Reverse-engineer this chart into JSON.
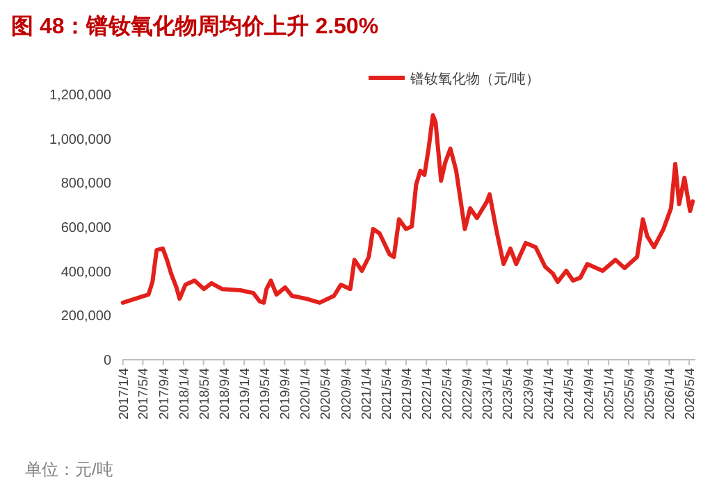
{
  "chart_data": {
    "type": "line",
    "title": "图 48：镨钕氧化物周均价上升 2.50%",
    "annotations": [
      "单位：元/吨"
    ],
    "legend": "top right",
    "grid": false,
    "marker": "none",
    "line_style": "solid",
    "x": [
      "2017-01-04",
      "2017-06-07",
      "2017-07-01",
      "2017-07-26",
      "2017-09-01",
      "2017-09-26",
      "2017-10-21",
      "2017-11-22",
      "2017-12-11",
      "2018-01-15",
      "2018-03-11",
      "2018-05-07",
      "2018-06-21",
      "2018-08-23",
      "2018-12-12",
      "2019-02-27",
      "2019-04-07",
      "2019-05-02",
      "2019-05-18",
      "2019-06-13",
      "2019-07-17",
      "2019-09-07",
      "2019-10-18",
      "2020-01-11",
      "2020-04-02",
      "2020-06-27",
      "2020-08-07",
      "2020-10-03",
      "2020-10-28",
      "2020-12-12",
      "2021-01-22",
      "2021-02-17",
      "2021-03-28",
      "2021-05-27",
      "2021-06-22",
      "2021-07-23",
      "2021-09-03",
      "2021-10-08",
      "2021-11-03",
      "2021-11-28",
      "2021-12-23",
      "2022-01-17",
      "2022-02-12",
      "2022-02-28",
      "2022-04-02",
      "2022-04-27",
      "2022-05-28",
      "2022-07-02",
      "2022-08-23",
      "2022-09-24",
      "2022-11-04",
      "2023-01-03",
      "2023-01-19",
      "2023-03-03",
      "2023-04-13",
      "2023-05-24",
      "2023-06-28",
      "2023-08-24",
      "2023-10-23",
      "2023-12-19",
      "2024-02-03",
      "2024-03-04",
      "2024-04-24",
      "2024-06-04",
      "2024-07-18",
      "2024-08-29",
      "2024-11-29",
      "2025-02-14",
      "2025-04-10",
      "2025-06-24",
      "2025-07-29",
      "2025-08-24",
      "2025-10-04",
      "2025-11-30",
      "2026-01-14",
      "2026-02-09",
      "2026-03-04",
      "2026-04-05",
      "2026-05-09",
      "2026-05-25"
    ],
    "series": [
      {
        "name": "镨钕氧化物（元/吨）",
        "color": "#e3211c",
        "values": [
          258000,
          295000,
          352000,
          496000,
          503000,
          452000,
          390000,
          327000,
          276000,
          339000,
          358000,
          320000,
          346000,
          320000,
          314000,
          302000,
          264000,
          258000,
          320000,
          358000,
          295000,
          327000,
          289000,
          276000,
          258000,
          289000,
          339000,
          320000,
          452000,
          402000,
          465000,
          591000,
          572000,
          477000,
          465000,
          635000,
          591000,
          603000,
          792000,
          855000,
          836000,
          955000,
          1106000,
          1074000,
          810000,
          892000,
          955000,
          855000,
          591000,
          685000,
          641000,
          716000,
          748000,
          578000,
          433000,
          503000,
          433000,
          528000,
          509000,
          421000,
          390000,
          352000,
          402000,
          358000,
          371000,
          433000,
          402000,
          452000,
          415000,
          465000,
          635000,
          559000,
          509000,
          591000,
          685000,
          886000,
          704000,
          823000,
          672000,
          716000
        ]
      }
    ],
    "ylim": [
      0,
      1200000
    ],
    "yticks": [
      {
        "value": 0,
        "label": "0"
      },
      {
        "value": 200000,
        "label": "200,000"
      },
      {
        "value": 400000,
        "label": "400,000"
      },
      {
        "value": 600000,
        "label": "600,000"
      },
      {
        "value": 800000,
        "label": "800,000"
      },
      {
        "value": 1000000,
        "label": "1,000,000"
      },
      {
        "value": 1200000,
        "label": "1,200,000"
      }
    ],
    "xlim": [
      "2017-01-01",
      "2026-06-10"
    ],
    "xticks": [
      {
        "value": "2017-01-04",
        "label": "2017/1/4"
      },
      {
        "value": "2017-05-04",
        "label": "2017/5/4"
      },
      {
        "value": "2017-09-04",
        "label": "2017/9/4"
      },
      {
        "value": "2018-01-04",
        "label": "2018/1/4"
      },
      {
        "value": "2018-05-04",
        "label": "2018/5/4"
      },
      {
        "value": "2018-09-04",
        "label": "2018/9/4"
      },
      {
        "value": "2019-01-04",
        "label": "2019/1/4"
      },
      {
        "value": "2019-05-04",
        "label": "2019/5/4"
      },
      {
        "value": "2019-09-04",
        "label": "2019/9/4"
      },
      {
        "value": "2020-01-04",
        "label": "2020/1/4"
      },
      {
        "value": "2020-05-04",
        "label": "2020/5/4"
      },
      {
        "value": "2020-09-04",
        "label": "2020/9/4"
      },
      {
        "value": "2021-01-04",
        "label": "2021/1/4"
      },
      {
        "value": "2021-05-04",
        "label": "2021/5/4"
      },
      {
        "value": "2021-09-04",
        "label": "2021/9/4"
      },
      {
        "value": "2022-01-04",
        "label": "2022/1/4"
      },
      {
        "value": "2022-05-04",
        "label": "2022/5/4"
      },
      {
        "value": "2022-09-04",
        "label": "2022/9/4"
      },
      {
        "value": "2023-01-04",
        "label": "2023/1/4"
      },
      {
        "value": "2023-05-04",
        "label": "2023/5/4"
      },
      {
        "value": "2023-09-04",
        "label": "2023/9/4"
      },
      {
        "value": "2024-01-04",
        "label": "2024/1/4"
      },
      {
        "value": "2024-05-04",
        "label": "2024/5/4"
      },
      {
        "value": "2024-09-04",
        "label": "2024/9/4"
      },
      {
        "value": "2025-01-04",
        "label": "2025/1/4"
      },
      {
        "value": "2025-05-04",
        "label": "2025/5/4"
      },
      {
        "value": "2025-09-04",
        "label": "2025/9/4"
      },
      {
        "value": "2026-01-04",
        "label": "2026/1/4"
      },
      {
        "value": "2026-05-04",
        "label": "2026/5/4"
      }
    ]
  }
}
